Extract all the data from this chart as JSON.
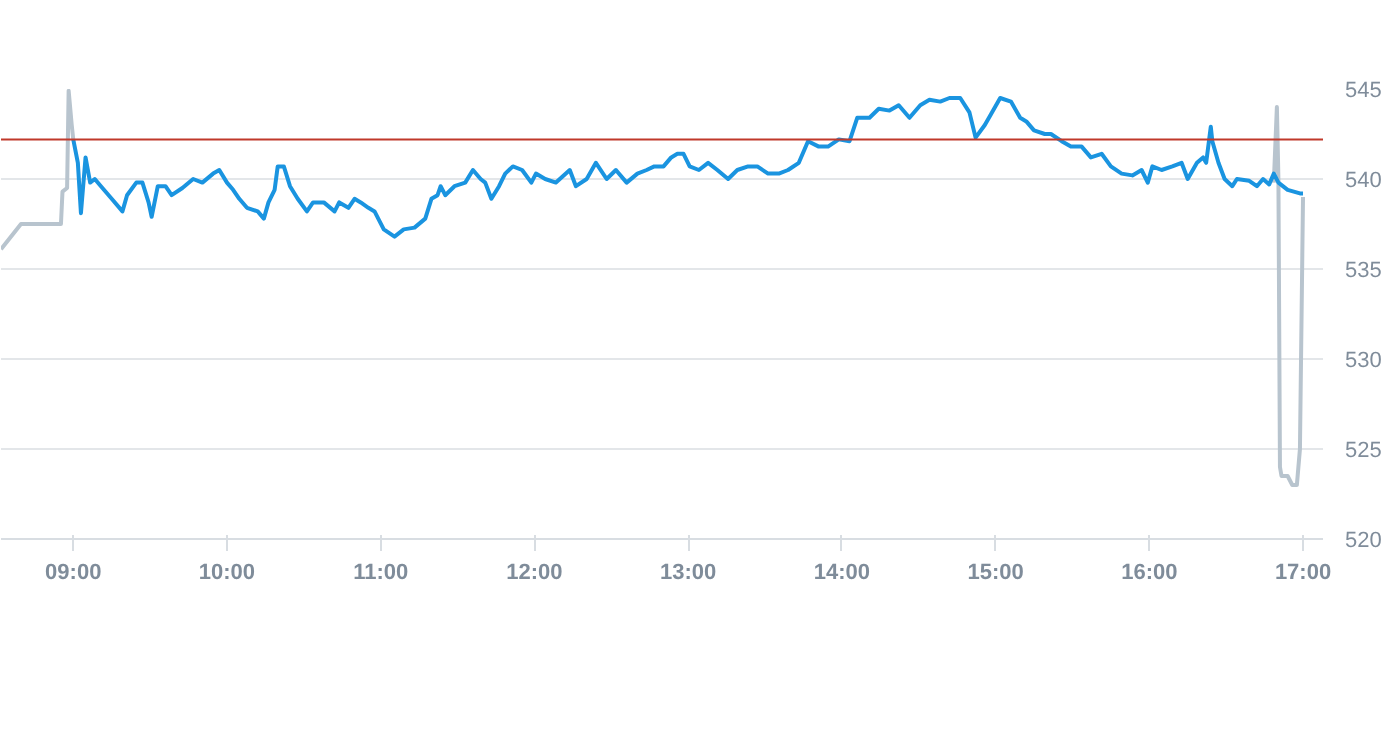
{
  "chart_data": {
    "type": "line",
    "xlim": [
      8.53,
      17.13
    ],
    "ylim": [
      520,
      545
    ],
    "xticks": [
      {
        "value": 9,
        "label": "09:00"
      },
      {
        "value": 10,
        "label": "10:00"
      },
      {
        "value": 11,
        "label": "11:00"
      },
      {
        "value": 12,
        "label": "12:00"
      },
      {
        "value": 13,
        "label": "13:00"
      },
      {
        "value": 14,
        "label": "14:00"
      },
      {
        "value": 15,
        "label": "15:00"
      },
      {
        "value": 16,
        "label": "16:00"
      },
      {
        "value": 17,
        "label": "17:00"
      }
    ],
    "yticks": [
      520,
      525,
      530,
      535,
      540,
      545
    ],
    "grid": "y",
    "ref_lines": [
      {
        "axis": "y",
        "value": 542.2,
        "color": "#c0392b"
      }
    ],
    "series": [
      {
        "color": "#b8c4ce",
        "x": [
          8.53,
          8.66,
          8.92,
          8.93,
          8.96,
          8.97,
          8.99,
          9.0
        ],
        "values": [
          536.1,
          537.5,
          537.5,
          539.3,
          539.5,
          544.9,
          543,
          542.2
        ]
      },
      {
        "color": "#b8c4ce",
        "x": [
          16.81,
          16.83,
          16.84,
          16.85,
          16.86,
          16.9,
          16.93,
          16.96,
          16.98,
          17.0
        ],
        "values": [
          539.8,
          544,
          540,
          524,
          523.5,
          523.5,
          523,
          523,
          525,
          539
        ]
      },
      {
        "color": "#1a94e0",
        "x": [
          9.0,
          9.03,
          9.05,
          9.08,
          9.11,
          9.14,
          9.18,
          9.25,
          9.32,
          9.35,
          9.41,
          9.45,
          9.49,
          9.51,
          9.55,
          9.6,
          9.64,
          9.71,
          9.78,
          9.84,
          9.91,
          9.95,
          10.0,
          10.04,
          10.08,
          10.13,
          10.2,
          10.24,
          10.27,
          10.31,
          10.33,
          10.37,
          10.41,
          10.46,
          10.52,
          10.56,
          10.63,
          10.7,
          10.73,
          10.79,
          10.83,
          10.87,
          10.92,
          10.96,
          11.02,
          11.09,
          11.15,
          11.22,
          11.29,
          11.33,
          11.37,
          11.39,
          11.42,
          11.48,
          11.55,
          11.6,
          11.65,
          11.68,
          11.72,
          11.77,
          11.81,
          11.86,
          11.92,
          11.98,
          12.01,
          12.07,
          12.14,
          12.23,
          12.27,
          12.34,
          12.4,
          12.47,
          12.53,
          12.6,
          12.67,
          12.73,
          12.78,
          12.84,
          12.89,
          12.93,
          12.97,
          13.01,
          13.07,
          13.13,
          13.19,
          13.26,
          13.32,
          13.39,
          13.45,
          13.52,
          13.59,
          13.65,
          13.72,
          13.78,
          13.85,
          13.91,
          13.98,
          14.05,
          14.1,
          14.18,
          14.24,
          14.31,
          14.37,
          14.44,
          14.51,
          14.57,
          14.64,
          14.7,
          14.77,
          14.83,
          14.87,
          14.93,
          14.97,
          15.03,
          15.1,
          15.16,
          15.2,
          15.25,
          15.32,
          15.36,
          15.43,
          15.49,
          15.56,
          15.62,
          15.69,
          15.75,
          15.82,
          15.89,
          15.95,
          15.99,
          16.02,
          16.08,
          16.15,
          16.21,
          16.25,
          16.31,
          16.35,
          16.37,
          16.4,
          16.41,
          16.45,
          16.49,
          16.54,
          16.57,
          16.65,
          16.7,
          16.74,
          16.78,
          16.81,
          16.84,
          16.9,
          16.98,
          17.0
        ],
        "values": [
          542.2,
          540.9,
          538.1,
          541.2,
          539.8,
          540.0,
          539.6,
          538.9,
          538.2,
          539.1,
          539.8,
          539.8,
          538.7,
          537.9,
          539.6,
          539.6,
          539.1,
          539.5,
          540.0,
          539.8,
          540.3,
          540.5,
          539.8,
          539.4,
          538.9,
          538.4,
          538.2,
          537.8,
          538.7,
          539.4,
          540.7,
          540.7,
          539.6,
          538.9,
          538.2,
          538.7,
          538.7,
          538.2,
          538.7,
          538.4,
          538.9,
          538.7,
          538.4,
          538.2,
          537.2,
          536.8,
          537.2,
          537.3,
          537.8,
          538.9,
          539.1,
          539.6,
          539.1,
          539.6,
          539.8,
          540.5,
          540.0,
          539.8,
          538.9,
          539.6,
          540.3,
          540.7,
          540.5,
          539.8,
          540.3,
          540.0,
          539.8,
          540.5,
          539.6,
          540.0,
          540.9,
          540.0,
          540.5,
          539.8,
          540.3,
          540.5,
          540.7,
          540.7,
          541.2,
          541.4,
          541.4,
          540.7,
          540.5,
          540.9,
          540.5,
          540.0,
          540.5,
          540.7,
          540.7,
          540.3,
          540.3,
          540.5,
          540.9,
          542.1,
          541.8,
          541.8,
          542.2,
          542.1,
          543.4,
          543.4,
          543.9,
          543.8,
          544.1,
          543.4,
          544.1,
          544.4,
          544.3,
          544.5,
          544.5,
          543.7,
          542.3,
          543.0,
          543.6,
          544.5,
          544.3,
          543.4,
          543.2,
          542.7,
          542.5,
          542.5,
          542.1,
          541.8,
          541.8,
          541.2,
          541.4,
          540.7,
          540.3,
          540.2,
          540.5,
          539.8,
          540.7,
          540.5,
          540.7,
          540.9,
          540.0,
          540.9,
          541.2,
          540.9,
          542.9,
          542.1,
          540.9,
          540.0,
          539.6,
          540.0,
          539.9,
          539.6,
          540.0,
          539.7,
          540.3,
          539.8,
          539.4,
          539.2,
          539.2
        ]
      }
    ]
  }
}
